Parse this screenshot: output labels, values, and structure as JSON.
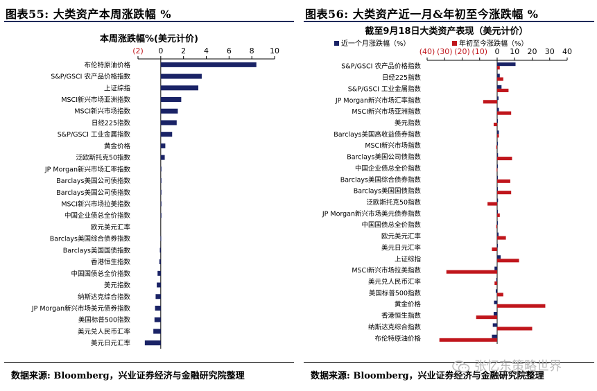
{
  "panels": {
    "left": {
      "title": "图表55:  大类资产本周涨跌幅  %",
      "source": "数据来源:  Bloomberg，兴业证券经济与金融研究院整理"
    },
    "right": {
      "title": "图表56:  大类资产近一月&年初至今涨跌幅  %",
      "source": "数据来源:  Bloomberg，兴业证券经济与金融研究院整理"
    }
  },
  "watermark": "张忆东策略世界",
  "colors": {
    "navy": "#1a2366",
    "red": "#c0161c",
    "negative_tick": "#c0161c",
    "rule": "#1f2a5a"
  },
  "chart_data": [
    {
      "type": "bar",
      "orientation": "horizontal",
      "title": "本周涨跌幅%(美元计价)",
      "xlim": [
        -2,
        10
      ],
      "xticks": [
        -2,
        0,
        2,
        4,
        6,
        8,
        10
      ],
      "xtick_labels": [
        "(2)",
        "0",
        "2",
        "4",
        "6",
        "8",
        "10"
      ],
      "axis_position": "top",
      "categories": [
        "布伦特原油价格",
        "S&P/GSCI 农产品价格指数",
        "上证综指",
        "MSCI新兴市场亚洲指数",
        "MSCI新兴市场指数",
        "日经225指数",
        "S&P/GSCI 工业金属指数",
        "黄金价格",
        "泛欧斯托克50指数",
        "JP Morgan新兴市场汇率指数",
        "Barclays美国公司债指数",
        "Barclays美国公司债指数",
        "MSCI新兴市场拉美指数",
        "中国企业债总全价指数",
        "欧元美元汇率",
        "Barclays美国综合债券指数",
        "Barclays美国国债指数",
        "香港恒生指数",
        "中国国债总全价指数",
        "美元指数",
        "纳斯达克综合指数",
        "JP Morgan新兴市场美元债券指数",
        "美国标普500指数",
        "美元兑人民币汇率",
        "美元日元汇率"
      ],
      "series": [
        {
          "color": "#1a2366",
          "values": [
            8.4,
            3.6,
            3.3,
            1.8,
            1.5,
            1.4,
            1.0,
            0.4,
            0.35,
            0.05,
            0.03,
            0.03,
            0.02,
            0.01,
            0.0,
            -0.02,
            -0.08,
            -0.12,
            -0.28,
            -0.35,
            -0.45,
            -0.5,
            -0.55,
            -0.65,
            -1.4
          ]
        }
      ]
    },
    {
      "type": "bar",
      "orientation": "horizontal",
      "title": "截至9月18日大类资产表现（美元计价）",
      "xlim": [
        -40,
        40
      ],
      "xticks": [
        -40,
        -30,
        -20,
        -10,
        0,
        10,
        20,
        30,
        40
      ],
      "xtick_labels": [
        "(40)",
        "(30)",
        "(20)",
        "(10)",
        "0",
        "10",
        "20",
        "30",
        "40"
      ],
      "axis_position": "top",
      "legend": [
        "近一个月涨跌幅（%）",
        "年初至今涨跌幅（%）"
      ],
      "categories": [
        "S&P/GSCI 农产品价格指数",
        "日经225指数",
        "S&P/GSCI 工业金属指数",
        "JP Morgan新兴市场汇率指数",
        "MSCI新兴市场亚洲指数",
        "美元指数",
        "Barclays美国高收益债券指数",
        "MSCI新兴市场指数",
        "Barclays美国公司债指数",
        "中国企业债总全价指数",
        "Barclays美国综合债券指数",
        "Barclays美国国债指数",
        "泛欧斯托克50指数",
        "JP Morgan新兴市场美元债券指数",
        "中国国债总全价指数",
        "欧元美元汇率",
        "美元日元汇率",
        "上证综指",
        "MSCI新兴市场拉美指数",
        "美元兑人民币汇率",
        "美国标普500指数",
        "黄金价格",
        "香港恒生指数",
        "纳斯达克综合指数",
        "布伦特原油价格"
      ],
      "series": [
        {
          "name": "近一个月涨跌幅（%）",
          "color": "#1a2366",
          "values": [
            10.5,
            1.5,
            2.5,
            0.8,
            1.0,
            0.3,
            1.0,
            0.3,
            0.5,
            0.3,
            0.4,
            0.3,
            0.5,
            0.4,
            0.2,
            0.8,
            0.2,
            2.0,
            -1.5,
            -0.5,
            -0.8,
            -1.8,
            -2.0,
            -2.5,
            -3.0
          ]
        },
        {
          "name": "年初至今涨跌幅（%）",
          "color": "#c0161c",
          "values": [
            1.5,
            3.5,
            6.5,
            -8.0,
            8.0,
            -2.0,
            1.0,
            -0.5,
            8.5,
            -0.3,
            7.5,
            8.0,
            -5.5,
            1.5,
            -0.5,
            5.0,
            -3.0,
            12.5,
            -29.0,
            -1.5,
            3.5,
            27.5,
            -12.0,
            20.0,
            -33.0
          ]
        }
      ]
    }
  ]
}
